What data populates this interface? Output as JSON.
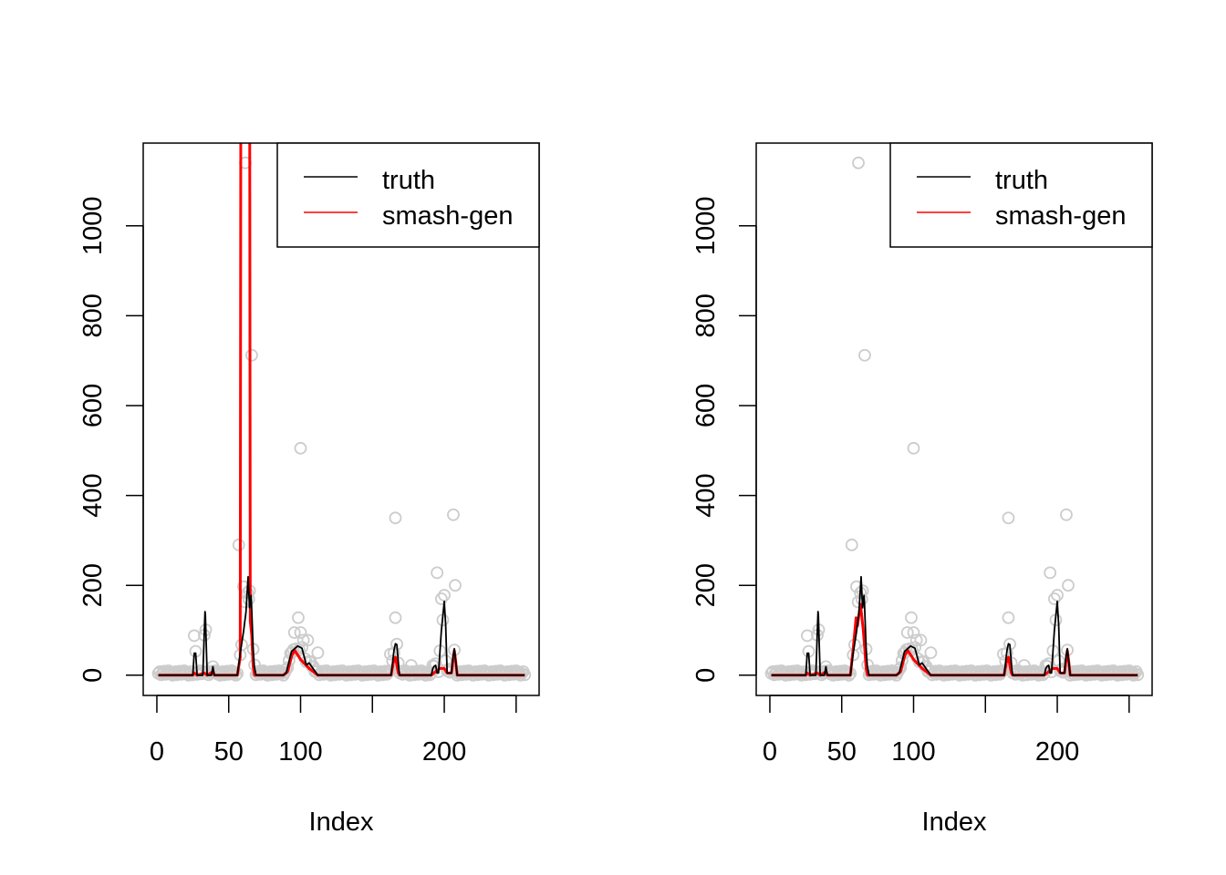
{
  "chart_data": [
    {
      "type": "line",
      "panel": "left",
      "xlabel": "Index",
      "ylabel": "",
      "xlim": [
        -9.5,
        266
      ],
      "ylim": [
        -45,
        1184
      ],
      "x_ticks": [
        0,
        50,
        100,
        150,
        200,
        250
      ],
      "x_tick_labels": [
        "0",
        "50",
        "100",
        "",
        "200",
        ""
      ],
      "y_ticks": [
        0,
        200,
        400,
        600,
        800,
        1000
      ],
      "y_tick_labels": [
        "0",
        "200",
        "400",
        "600",
        "800",
        "1000"
      ],
      "n": 256,
      "legend": {
        "placement": "top-right",
        "entries": [
          {
            "label": "truth",
            "color": "#000000"
          },
          {
            "label": "smash-gen",
            "color": "#FF0000"
          }
        ]
      },
      "series": [
        {
          "name": "truth",
          "color": "#000000",
          "knots": [
            [
              1,
              0
            ],
            [
              25,
              0
            ],
            [
              26,
              49
            ],
            [
              27,
              49
            ],
            [
              28,
              0
            ],
            [
              32,
              0
            ],
            [
              33.6,
              151
            ],
            [
              35,
              0
            ],
            [
              38,
              0
            ],
            [
              39,
              19
            ],
            [
              40,
              0
            ],
            [
              56,
              0
            ],
            [
              58,
              49
            ],
            [
              60.3,
              97
            ],
            [
              62,
              140
            ],
            [
              63.5,
              219
            ],
            [
              64.5,
              150
            ],
            [
              65.6,
              180
            ],
            [
              67,
              60
            ],
            [
              67.8,
              20
            ],
            [
              69,
              0
            ],
            [
              88,
              0
            ],
            [
              90,
              5
            ],
            [
              93.7,
              53
            ],
            [
              98,
              65
            ],
            [
              101,
              60
            ],
            [
              104,
              23
            ],
            [
              106,
              27
            ],
            [
              112,
              0
            ],
            [
              163,
              0
            ],
            [
              165,
              55
            ],
            [
              166,
              70
            ],
            [
              167,
              68
            ],
            [
              168.5,
              10
            ],
            [
              169,
              0
            ],
            [
              191,
              0
            ],
            [
              192,
              15
            ],
            [
              193,
              20
            ],
            [
              194,
              22
            ],
            [
              195,
              5
            ],
            [
              196,
              5
            ],
            [
              198,
              100
            ],
            [
              200,
              164
            ],
            [
              201,
              110
            ],
            [
              202,
              5
            ],
            [
              205,
              5
            ],
            [
              206,
              40
            ],
            [
              207,
              59
            ],
            [
              208,
              30
            ],
            [
              209,
              0
            ],
            [
              256,
              0
            ]
          ]
        },
        {
          "name": "smash-gen",
          "color": "#FF0000",
          "knots": [
            [
              1,
              0
            ],
            [
              25,
              0
            ],
            [
              26,
              5
            ],
            [
              28,
              0
            ],
            [
              33,
              5
            ],
            [
              35,
              0
            ],
            [
              39,
              8
            ],
            [
              40,
              0
            ],
            [
              56,
              0
            ],
            [
              58,
              40
            ],
            [
              59,
              3000
            ],
            [
              60,
              3000
            ],
            [
              62,
              3000
            ],
            [
              63,
              3000
            ],
            [
              64,
              3000
            ],
            [
              65,
              120
            ],
            [
              66,
              90
            ],
            [
              67,
              20
            ],
            [
              68,
              0
            ],
            [
              88,
              0
            ],
            [
              91,
              8
            ],
            [
              94,
              45
            ],
            [
              96,
              55
            ],
            [
              100,
              35
            ],
            [
              106,
              15
            ],
            [
              112,
              0
            ],
            [
              163,
              0
            ],
            [
              165,
              35
            ],
            [
              166,
              40
            ],
            [
              168,
              5
            ],
            [
              169,
              0
            ],
            [
              191,
              0
            ],
            [
              194,
              8
            ],
            [
              197,
              15
            ],
            [
              200,
              15
            ],
            [
              202,
              5
            ],
            [
              205,
              5
            ],
            [
              207,
              55
            ],
            [
              208,
              30
            ],
            [
              209,
              0
            ],
            [
              256,
              0
            ]
          ]
        }
      ],
      "points": {
        "color": "#CCCCCC",
        "notable": [
          [
            57,
            290
          ],
          [
            60.3,
            197
          ],
          [
            61.4,
            163
          ],
          [
            61.6,
            1140
          ],
          [
            64.5,
            188
          ],
          [
            66,
            712
          ],
          [
            26,
            88
          ],
          [
            33,
            89
          ],
          [
            95.7,
            95
          ],
          [
            98.4,
            128
          ],
          [
            100,
            505
          ],
          [
            100,
            95
          ],
          [
            102,
            78
          ],
          [
            105,
            78
          ],
          [
            112,
            50
          ],
          [
            162.5,
            47
          ],
          [
            166,
            128
          ],
          [
            166,
            350
          ],
          [
            177,
            22
          ],
          [
            192,
            22
          ],
          [
            195,
            228
          ],
          [
            198,
            170
          ],
          [
            200,
            178
          ],
          [
            201,
            32
          ],
          [
            206.3,
            357
          ],
          [
            207.6,
            200
          ]
        ]
      }
    },
    {
      "type": "line",
      "panel": "right",
      "xlabel": "Index",
      "ylabel": "",
      "xlim": [
        -9.5,
        266
      ],
      "ylim": [
        -45,
        1184
      ],
      "x_ticks": [
        0,
        50,
        100,
        150,
        200,
        250
      ],
      "x_tick_labels": [
        "0",
        "50",
        "100",
        "",
        "200",
        ""
      ],
      "y_ticks": [
        0,
        200,
        400,
        600,
        800,
        1000
      ],
      "y_tick_labels": [
        "0",
        "200",
        "400",
        "600",
        "800",
        "1000"
      ],
      "n": 256,
      "legend": {
        "placement": "top-right",
        "entries": [
          {
            "label": "truth",
            "color": "#000000"
          },
          {
            "label": "smash-gen",
            "color": "#FF0000"
          }
        ]
      },
      "series": [
        {
          "name": "truth",
          "color": "#000000",
          "knots": [
            [
              1,
              0
            ],
            [
              25,
              0
            ],
            [
              26,
              49
            ],
            [
              27,
              49
            ],
            [
              28,
              0
            ],
            [
              32,
              0
            ],
            [
              33.6,
              151
            ],
            [
              35,
              0
            ],
            [
              38,
              0
            ],
            [
              39,
              19
            ],
            [
              40,
              0
            ],
            [
              56,
              0
            ],
            [
              58,
              49
            ],
            [
              60.3,
              97
            ],
            [
              62,
              140
            ],
            [
              63.5,
              219
            ],
            [
              64.5,
              150
            ],
            [
              65.6,
              180
            ],
            [
              67,
              60
            ],
            [
              67.8,
              20
            ],
            [
              69,
              0
            ],
            [
              88,
              0
            ],
            [
              90,
              5
            ],
            [
              93.7,
              53
            ],
            [
              98,
              65
            ],
            [
              101,
              60
            ],
            [
              104,
              23
            ],
            [
              106,
              27
            ],
            [
              112,
              0
            ],
            [
              163,
              0
            ],
            [
              165,
              55
            ],
            [
              166,
              70
            ],
            [
              167,
              68
            ],
            [
              168.5,
              10
            ],
            [
              169,
              0
            ],
            [
              191,
              0
            ],
            [
              192,
              15
            ],
            [
              193,
              20
            ],
            [
              194,
              22
            ],
            [
              195,
              5
            ],
            [
              196,
              5
            ],
            [
              198,
              100
            ],
            [
              200,
              164
            ],
            [
              201,
              110
            ],
            [
              202,
              5
            ],
            [
              205,
              5
            ],
            [
              206,
              40
            ],
            [
              207,
              59
            ],
            [
              208,
              30
            ],
            [
              209,
              0
            ],
            [
              256,
              0
            ]
          ]
        },
        {
          "name": "smash-gen",
          "color": "#FF0000",
          "knots": [
            [
              1,
              0
            ],
            [
              25,
              0
            ],
            [
              26,
              5
            ],
            [
              28,
              0
            ],
            [
              33,
              5
            ],
            [
              35,
              0
            ],
            [
              39,
              8
            ],
            [
              40,
              0
            ],
            [
              56,
              0
            ],
            [
              58,
              60
            ],
            [
              60,
              128
            ],
            [
              61,
              110
            ],
            [
              63,
              158
            ],
            [
              64,
              130
            ],
            [
              65,
              100
            ],
            [
              66,
              60
            ],
            [
              67,
              15
            ],
            [
              68,
              0
            ],
            [
              88,
              0
            ],
            [
              91,
              8
            ],
            [
              94,
              45
            ],
            [
              96,
              55
            ],
            [
              100,
              35
            ],
            [
              106,
              15
            ],
            [
              112,
              0
            ],
            [
              163,
              0
            ],
            [
              165,
              35
            ],
            [
              166,
              40
            ],
            [
              168,
              5
            ],
            [
              169,
              0
            ],
            [
              191,
              0
            ],
            [
              194,
              8
            ],
            [
              197,
              15
            ],
            [
              200,
              15
            ],
            [
              202,
              5
            ],
            [
              205,
              5
            ],
            [
              207,
              55
            ],
            [
              208,
              30
            ],
            [
              209,
              0
            ],
            [
              256,
              0
            ]
          ]
        }
      ],
      "points": {
        "color": "#CCCCCC",
        "notable": [
          [
            57,
            290
          ],
          [
            60.3,
            197
          ],
          [
            61.4,
            163
          ],
          [
            61.6,
            1140
          ],
          [
            64.5,
            188
          ],
          [
            66,
            712
          ],
          [
            26,
            88
          ],
          [
            33,
            89
          ],
          [
            95.7,
            95
          ],
          [
            98.4,
            128
          ],
          [
            100,
            505
          ],
          [
            100,
            95
          ],
          [
            102,
            78
          ],
          [
            105,
            78
          ],
          [
            112,
            50
          ],
          [
            162.5,
            47
          ],
          [
            166,
            128
          ],
          [
            166,
            350
          ],
          [
            177,
            22
          ],
          [
            192,
            22
          ],
          [
            195,
            228
          ],
          [
            198,
            170
          ],
          [
            200,
            178
          ],
          [
            201,
            32
          ],
          [
            206.3,
            357
          ],
          [
            207.6,
            200
          ]
        ]
      }
    }
  ]
}
